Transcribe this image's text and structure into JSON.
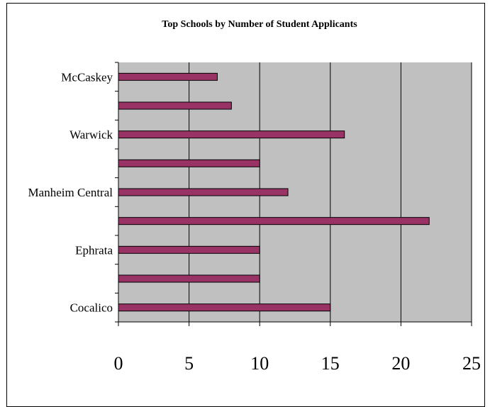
{
  "chart_data": {
    "type": "bar",
    "orientation": "horizontal",
    "title": "Top Schools by Number of Student Applicants",
    "xlabel": "",
    "ylabel": "",
    "categories": [
      "Cocalico",
      "",
      "Ephrata",
      "",
      "Manheim Central",
      "",
      "Warwick",
      "",
      "McCaskey"
    ],
    "values": [
      15,
      10,
      10,
      22,
      12,
      10,
      16,
      8,
      7
    ],
    "xlim": [
      0,
      25
    ],
    "xticks": [
      0,
      5,
      10,
      15,
      20,
      25
    ],
    "grid": "vertical",
    "legend": "none",
    "colors": {
      "bar": "#993366",
      "plot_bg": "#c0c0c0",
      "grid": "#000000"
    }
  }
}
